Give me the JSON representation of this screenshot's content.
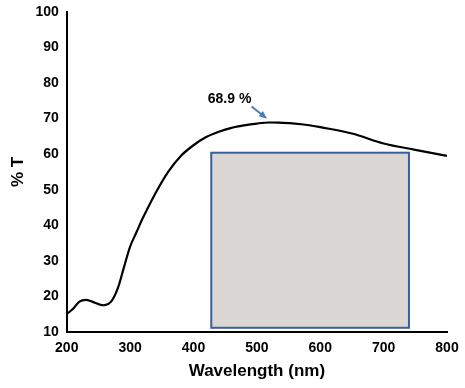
{
  "chart_data": {
    "type": "line",
    "x_label": "Wavelength (nm)",
    "y_label": "% T",
    "annotation": "68.9 %",
    "x": [
      200,
      210,
      220,
      230,
      240,
      250,
      260,
      270,
      280,
      290,
      300,
      310,
      320,
      340,
      360,
      380,
      400,
      420,
      440,
      460,
      480,
      500,
      520,
      540,
      560,
      580,
      600,
      650,
      700,
      750,
      800
    ],
    "values": [
      15,
      16.5,
      18.5,
      19,
      18.5,
      17.8,
      17.5,
      18.5,
      22,
      28,
      34,
      38,
      42,
      49,
      55,
      59.5,
      62.5,
      64.8,
      66.3,
      67.4,
      68.1,
      68.6,
      68.9,
      68.8,
      68.6,
      68.2,
      67.6,
      65.8,
      63,
      61.2,
      59.5
    ],
    "color": "#000000",
    "xlim": [
      200,
      800
    ],
    "xticks": [
      200,
      300,
      400,
      500,
      600,
      700,
      800
    ],
    "ylim": [
      10,
      100
    ],
    "yticks": [
      10,
      20,
      30,
      40,
      50,
      60,
      70,
      80,
      90,
      100
    ],
    "grid": false
  }
}
